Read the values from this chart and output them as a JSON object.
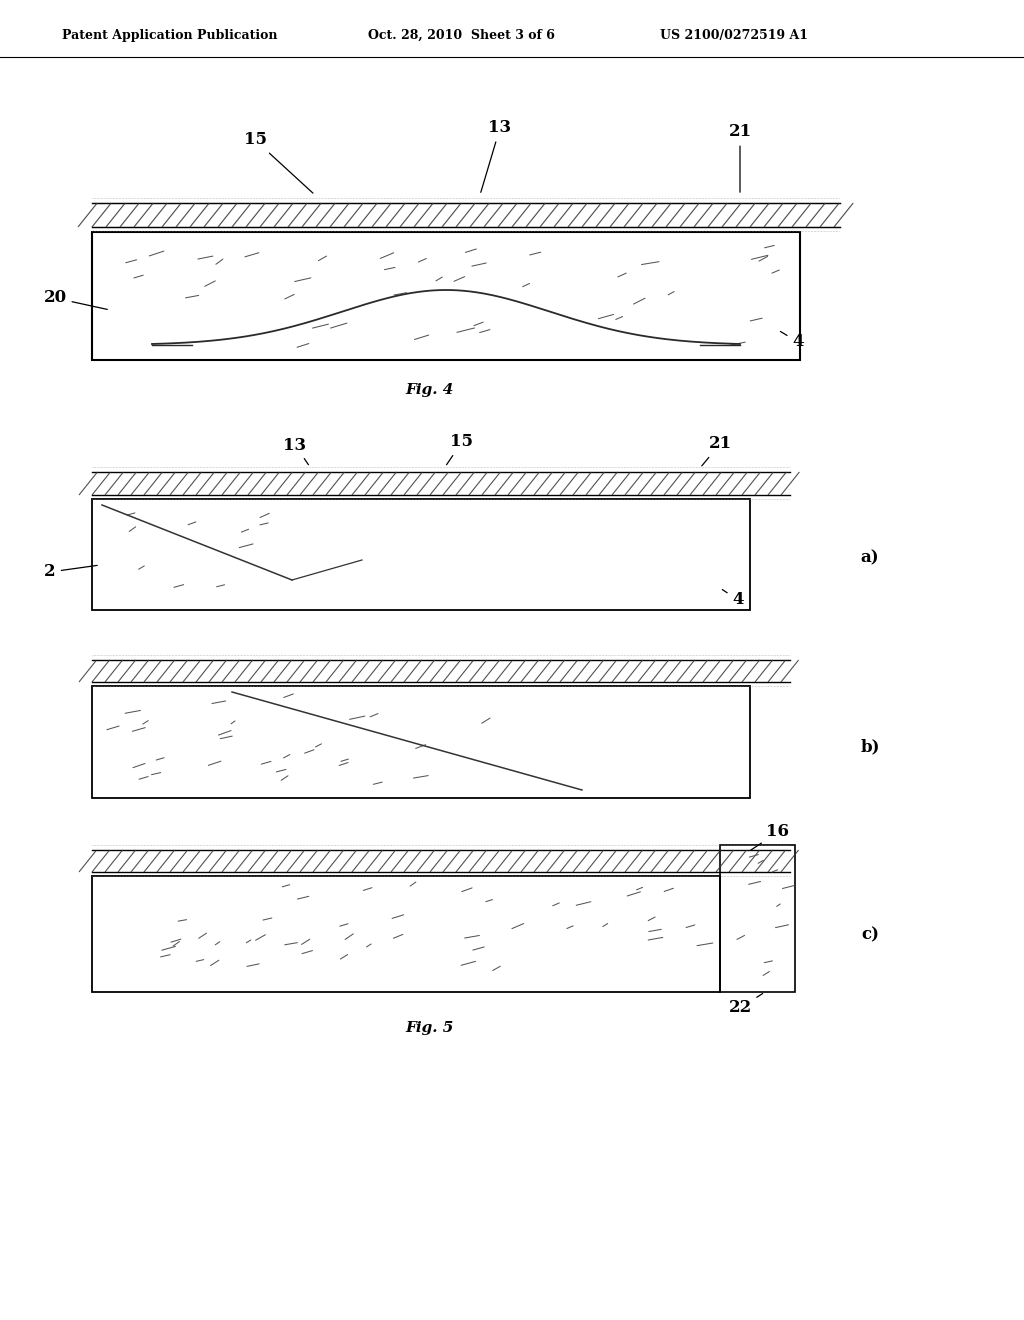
{
  "bg_color": "#ffffff",
  "header_left": "Patent Application Publication",
  "header_mid": "Oct. 28, 2010  Sheet 3 of 6",
  "header_right": "US 2100/0272519 A1",
  "fig4_caption": "Fig. 4",
  "fig5_caption": "Fig. 5",
  "label_fontsize": 12,
  "caption_fontsize": 11,
  "header_fontsize": 9
}
